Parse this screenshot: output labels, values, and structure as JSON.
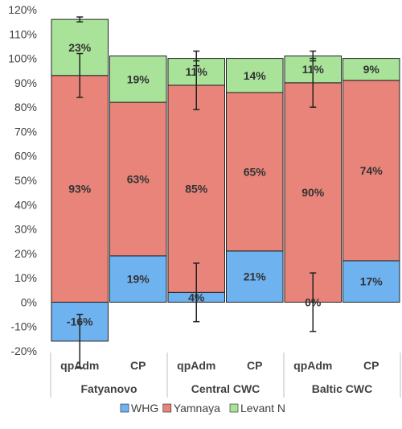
{
  "chart_data": {
    "type": "bar",
    "stacked": true,
    "title": "",
    "xlabel": "",
    "ylabel": "",
    "ylim": [
      -20,
      120
    ],
    "y_ticks": [
      -20,
      -10,
      0,
      10,
      20,
      30,
      40,
      50,
      60,
      70,
      80,
      90,
      100,
      110,
      120
    ],
    "y_tick_labels": [
      "-20%",
      "-10%",
      "0%",
      "10%",
      "20%",
      "30%",
      "40%",
      "50%",
      "60%",
      "70%",
      "80%",
      "90%",
      "100%",
      "110%",
      "120%"
    ],
    "grid": false,
    "legend_position": "bottom",
    "categories": [
      "qpAdm",
      "CP",
      "qpAdm",
      "CP",
      "qpAdm",
      "CP"
    ],
    "groups": [
      "Fatyanovo",
      "Central CWC",
      "Baltic CWC"
    ],
    "series": [
      {
        "name": "WHG",
        "color": "#6fb2f0",
        "values": [
          -16,
          19,
          4,
          21,
          0,
          17
        ],
        "labels": [
          "-16%",
          "19%",
          "4%",
          "21%",
          "0%",
          "17%"
        ],
        "error": [
          11,
          null,
          12,
          null,
          12,
          null
        ]
      },
      {
        "name": "Yamnaya",
        "color": "#e8847a",
        "values": [
          93,
          63,
          85,
          65,
          90,
          74
        ],
        "labels": [
          "93%",
          "63%",
          "85%",
          "65%",
          "90%",
          "74%"
        ],
        "error": [
          9,
          null,
          10,
          null,
          10,
          null
        ]
      },
      {
        "name": "Levant N",
        "color": "#a9e39a",
        "values": [
          23,
          19,
          11,
          14,
          11,
          9
        ],
        "labels": [
          "23%",
          "19%",
          "11%",
          "14%",
          "11%",
          "9%"
        ],
        "error": [
          1,
          null,
          3,
          null,
          2,
          null
        ]
      }
    ]
  }
}
